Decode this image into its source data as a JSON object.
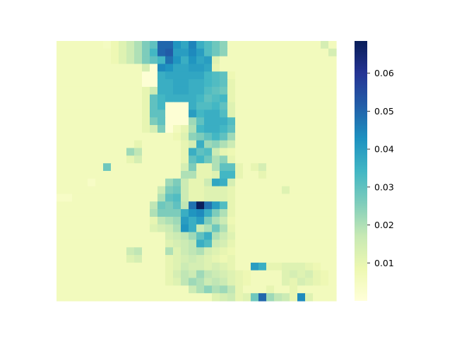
{
  "chart_data": {
    "type": "heatmap",
    "title": "",
    "xlabel": "",
    "ylabel": "",
    "grid": false,
    "x_ticks_shown": false,
    "y_ticks_shown": false,
    "colormap": "YlGnBu",
    "colormap_stops": [
      "#ffffd9",
      "#edf8b1",
      "#c7e9b4",
      "#7fcdbb",
      "#41b6c4",
      "#1d91c0",
      "#225ea8",
      "#253494",
      "#081d58"
    ],
    "value_range": [
      0.0,
      0.0685
    ],
    "colorbar": {
      "position": "right",
      "ticks": [
        0.01,
        0.02,
        0.03,
        0.04,
        0.05,
        0.06
      ],
      "tick_labels": [
        "0.01",
        "0.02",
        "0.03",
        "0.04",
        "0.05",
        "0.06"
      ]
    },
    "rows": 34,
    "cols": 36,
    "values": [
      [
        0.006,
        0.006,
        0.006,
        0.006,
        0.006,
        0.006,
        0.005,
        0.008,
        0.012,
        0.016,
        0.02,
        0.026,
        0.03,
        0.05,
        0.05,
        0.042,
        0.038,
        0.045,
        0.036,
        0.032,
        0.028,
        0.024,
        0.006,
        0.006,
        0.006,
        0.006,
        0.006,
        0.006,
        0.006,
        0.006,
        0.006,
        0.006,
        0.006,
        0.006,
        0.014,
        0.006
      ],
      [
        0.006,
        0.006,
        0.006,
        0.006,
        0.006,
        0.006,
        0.006,
        0.008,
        0.012,
        0.016,
        0.02,
        0.026,
        0.034,
        0.05,
        0.052,
        0.04,
        0.04,
        0.044,
        0.04,
        0.032,
        0.028,
        0.024,
        0.006,
        0.006,
        0.006,
        0.006,
        0.006,
        0.006,
        0.006,
        0.006,
        0.006,
        0.006,
        0.006,
        0.006,
        0.006,
        0.014
      ],
      [
        0.006,
        0.006,
        0.006,
        0.006,
        0.006,
        0.006,
        0.006,
        0.008,
        0.012,
        0.016,
        0.02,
        0.026,
        0.03,
        0.034,
        0.048,
        0.042,
        0.036,
        0.042,
        0.038,
        0.04,
        0.012,
        0.006,
        0.006,
        0.006,
        0.006,
        0.006,
        0.006,
        0.006,
        0.006,
        0.006,
        0.006,
        0.006,
        0.006,
        0.006,
        0.006,
        0.006
      ],
      [
        0.006,
        0.006,
        0.006,
        0.006,
        0.006,
        0.006,
        0.006,
        0.006,
        0.006,
        0.006,
        0.006,
        0.014,
        0.001,
        0.044,
        0.042,
        0.038,
        0.038,
        0.04,
        0.04,
        0.038,
        0.01,
        0.006,
        0.006,
        0.006,
        0.006,
        0.006,
        0.006,
        0.006,
        0.006,
        0.006,
        0.006,
        0.006,
        0.006,
        0.006,
        0.006,
        0.006
      ],
      [
        0.006,
        0.006,
        0.006,
        0.006,
        0.006,
        0.006,
        0.006,
        0.006,
        0.006,
        0.006,
        0.006,
        0.001,
        0.001,
        0.036,
        0.038,
        0.038,
        0.038,
        0.038,
        0.038,
        0.034,
        0.032,
        0.03,
        0.008,
        0.006,
        0.006,
        0.006,
        0.006,
        0.006,
        0.006,
        0.006,
        0.006,
        0.006,
        0.006,
        0.006,
        0.006,
        0.006
      ],
      [
        0.006,
        0.006,
        0.006,
        0.006,
        0.006,
        0.006,
        0.006,
        0.006,
        0.006,
        0.006,
        0.006,
        0.001,
        0.001,
        0.036,
        0.036,
        0.038,
        0.038,
        0.036,
        0.036,
        0.034,
        0.032,
        0.03,
        0.01,
        0.006,
        0.006,
        0.006,
        0.006,
        0.006,
        0.006,
        0.006,
        0.006,
        0.006,
        0.006,
        0.006,
        0.006,
        0.006
      ],
      [
        0.006,
        0.006,
        0.006,
        0.006,
        0.006,
        0.006,
        0.006,
        0.006,
        0.006,
        0.006,
        0.006,
        0.01,
        0.016,
        0.036,
        0.036,
        0.038,
        0.038,
        0.036,
        0.036,
        0.032,
        0.03,
        0.028,
        0.01,
        0.006,
        0.006,
        0.006,
        0.006,
        0.006,
        0.006,
        0.006,
        0.006,
        0.006,
        0.006,
        0.006,
        0.006,
        0.006
      ],
      [
        0.006,
        0.006,
        0.006,
        0.006,
        0.006,
        0.006,
        0.006,
        0.006,
        0.006,
        0.006,
        0.006,
        0.01,
        0.03,
        0.034,
        0.036,
        0.036,
        0.036,
        0.036,
        0.034,
        0.03,
        0.032,
        0.034,
        0.01,
        0.006,
        0.006,
        0.006,
        0.006,
        0.006,
        0.006,
        0.006,
        0.006,
        0.006,
        0.006,
        0.006,
        0.006,
        0.006
      ],
      [
        0.006,
        0.006,
        0.006,
        0.006,
        0.006,
        0.006,
        0.006,
        0.006,
        0.006,
        0.006,
        0.006,
        0.01,
        0.03,
        0.034,
        0.001,
        0.001,
        0.001,
        0.036,
        0.032,
        0.032,
        0.034,
        0.03,
        0.012,
        0.006,
        0.006,
        0.006,
        0.006,
        0.006,
        0.006,
        0.006,
        0.006,
        0.006,
        0.006,
        0.006,
        0.006,
        0.006
      ],
      [
        0.006,
        0.006,
        0.006,
        0.006,
        0.006,
        0.006,
        0.006,
        0.006,
        0.006,
        0.006,
        0.006,
        0.01,
        0.03,
        0.03,
        0.001,
        0.001,
        0.001,
        0.04,
        0.034,
        0.036,
        0.036,
        0.032,
        0.012,
        0.006,
        0.006,
        0.006,
        0.006,
        0.006,
        0.006,
        0.006,
        0.006,
        0.006,
        0.006,
        0.006,
        0.006,
        0.006
      ],
      [
        0.006,
        0.006,
        0.006,
        0.006,
        0.006,
        0.006,
        0.006,
        0.006,
        0.006,
        0.006,
        0.006,
        0.01,
        0.026,
        0.03,
        0.001,
        0.001,
        0.001,
        0.022,
        0.03,
        0.036,
        0.036,
        0.036,
        0.032,
        0.006,
        0.006,
        0.006,
        0.006,
        0.006,
        0.006,
        0.006,
        0.006,
        0.006,
        0.006,
        0.006,
        0.006,
        0.006
      ],
      [
        0.006,
        0.006,
        0.006,
        0.006,
        0.006,
        0.006,
        0.006,
        0.006,
        0.006,
        0.006,
        0.006,
        0.01,
        0.014,
        0.026,
        0.001,
        0.006,
        0.01,
        0.02,
        0.034,
        0.036,
        0.036,
        0.034,
        0.03,
        0.006,
        0.006,
        0.006,
        0.006,
        0.006,
        0.006,
        0.006,
        0.006,
        0.006,
        0.006,
        0.006,
        0.006,
        0.006
      ],
      [
        0.006,
        0.006,
        0.006,
        0.006,
        0.006,
        0.006,
        0.006,
        0.006,
        0.006,
        0.006,
        0.006,
        0.006,
        0.006,
        0.006,
        0.006,
        0.008,
        0.012,
        0.024,
        0.026,
        0.03,
        0.034,
        0.03,
        0.022,
        0.006,
        0.006,
        0.006,
        0.006,
        0.006,
        0.006,
        0.006,
        0.006,
        0.006,
        0.006,
        0.006,
        0.006,
        0.006
      ],
      [
        0.006,
        0.006,
        0.006,
        0.006,
        0.006,
        0.006,
        0.006,
        0.006,
        0.006,
        0.006,
        0.01,
        0.006,
        0.006,
        0.006,
        0.006,
        0.006,
        0.01,
        0.014,
        0.036,
        0.022,
        0.024,
        0.02,
        0.016,
        0.006,
        0.006,
        0.006,
        0.006,
        0.006,
        0.006,
        0.006,
        0.006,
        0.006,
        0.006,
        0.006,
        0.006,
        0.006
      ],
      [
        0.006,
        0.006,
        0.006,
        0.006,
        0.006,
        0.006,
        0.006,
        0.006,
        0.006,
        0.022,
        0.018,
        0.006,
        0.006,
        0.006,
        0.006,
        0.006,
        0.01,
        0.036,
        0.03,
        0.032,
        0.016,
        0.01,
        0.008,
        0.006,
        0.006,
        0.006,
        0.006,
        0.006,
        0.006,
        0.006,
        0.006,
        0.006,
        0.006,
        0.006,
        0.006,
        0.006
      ],
      [
        0.006,
        0.006,
        0.006,
        0.006,
        0.006,
        0.006,
        0.006,
        0.006,
        0.006,
        0.01,
        0.014,
        0.006,
        0.006,
        0.006,
        0.006,
        0.006,
        0.01,
        0.03,
        0.034,
        0.028,
        0.02,
        0.024,
        0.01,
        0.006,
        0.006,
        0.006,
        0.006,
        0.006,
        0.006,
        0.006,
        0.006,
        0.006,
        0.006,
        0.006,
        0.006,
        0.006
      ],
      [
        0.006,
        0.006,
        0.006,
        0.006,
        0.006,
        0.006,
        0.028,
        0.006,
        0.006,
        0.006,
        0.006,
        0.006,
        0.006,
        0.006,
        0.006,
        0.006,
        0.014,
        0.026,
        0.01,
        0.01,
        0.02,
        0.03,
        0.03,
        0.01,
        0.006,
        0.01,
        0.014,
        0.006,
        0.006,
        0.006,
        0.006,
        0.006,
        0.006,
        0.006,
        0.006,
        0.006
      ],
      [
        0.006,
        0.006,
        0.006,
        0.006,
        0.006,
        0.006,
        0.006,
        0.006,
        0.006,
        0.006,
        0.006,
        0.006,
        0.006,
        0.006,
        0.006,
        0.006,
        0.02,
        0.02,
        0.01,
        0.01,
        0.012,
        0.034,
        0.034,
        0.01,
        0.006,
        0.006,
        0.01,
        0.006,
        0.006,
        0.006,
        0.006,
        0.006,
        0.006,
        0.006,
        0.006,
        0.006
      ],
      [
        0.006,
        0.006,
        0.006,
        0.006,
        0.004,
        0.006,
        0.006,
        0.006,
        0.006,
        0.006,
        0.006,
        0.006,
        0.006,
        0.006,
        0.022,
        0.026,
        0.016,
        0.01,
        0.01,
        0.016,
        0.038,
        0.036,
        0.014,
        0.006,
        0.006,
        0.006,
        0.006,
        0.006,
        0.006,
        0.006,
        0.006,
        0.006,
        0.006,
        0.006,
        0.006,
        0.006
      ],
      [
        0.006,
        0.006,
        0.006,
        0.006,
        0.006,
        0.006,
        0.006,
        0.006,
        0.006,
        0.006,
        0.006,
        0.006,
        0.006,
        0.016,
        0.026,
        0.028,
        0.016,
        0.01,
        0.01,
        0.012,
        0.012,
        0.012,
        0.01,
        0.006,
        0.006,
        0.006,
        0.006,
        0.006,
        0.006,
        0.012,
        0.006,
        0.006,
        0.006,
        0.006,
        0.006,
        0.006
      ],
      [
        0.004,
        0.004,
        0.006,
        0.006,
        0.006,
        0.006,
        0.006,
        0.006,
        0.006,
        0.006,
        0.006,
        0.006,
        0.006,
        0.02,
        0.03,
        0.032,
        0.016,
        0.01,
        0.01,
        0.012,
        0.012,
        0.012,
        0.01,
        0.006,
        0.006,
        0.006,
        0.006,
        0.006,
        0.006,
        0.006,
        0.006,
        0.006,
        0.006,
        0.006,
        0.006,
        0.006
      ],
      [
        0.006,
        0.006,
        0.006,
        0.006,
        0.006,
        0.006,
        0.006,
        0.006,
        0.006,
        0.006,
        0.006,
        0.006,
        0.018,
        0.028,
        0.026,
        0.03,
        0.018,
        0.048,
        0.068,
        0.048,
        0.04,
        0.032,
        0.01,
        0.006,
        0.006,
        0.006,
        0.006,
        0.006,
        0.006,
        0.006,
        0.006,
        0.006,
        0.006,
        0.006,
        0.006,
        0.006
      ],
      [
        0.006,
        0.006,
        0.006,
        0.006,
        0.006,
        0.006,
        0.006,
        0.006,
        0.006,
        0.006,
        0.006,
        0.006,
        0.02,
        0.026,
        0.026,
        0.026,
        0.036,
        0.042,
        0.044,
        0.036,
        0.026,
        0.02,
        0.01,
        0.006,
        0.006,
        0.006,
        0.006,
        0.006,
        0.006,
        0.006,
        0.006,
        0.006,
        0.006,
        0.006,
        0.006,
        0.006
      ],
      [
        0.006,
        0.006,
        0.006,
        0.006,
        0.006,
        0.006,
        0.006,
        0.006,
        0.006,
        0.006,
        0.006,
        0.006,
        0.01,
        0.018,
        0.02,
        0.022,
        0.04,
        0.036,
        0.04,
        0.026,
        0.02,
        0.016,
        0.008,
        0.006,
        0.006,
        0.006,
        0.006,
        0.006,
        0.006,
        0.006,
        0.006,
        0.006,
        0.006,
        0.006,
        0.006,
        0.006
      ],
      [
        0.006,
        0.006,
        0.006,
        0.006,
        0.006,
        0.006,
        0.006,
        0.006,
        0.006,
        0.006,
        0.006,
        0.006,
        0.012,
        0.014,
        0.016,
        0.02,
        0.042,
        0.036,
        0.016,
        0.02,
        0.028,
        0.02,
        0.01,
        0.006,
        0.006,
        0.006,
        0.006,
        0.006,
        0.006,
        0.006,
        0.006,
        0.006,
        0.006,
        0.006,
        0.006,
        0.006
      ],
      [
        0.006,
        0.006,
        0.006,
        0.006,
        0.006,
        0.006,
        0.006,
        0.006,
        0.006,
        0.006,
        0.006,
        0.006,
        0.006,
        0.006,
        0.014,
        0.016,
        0.018,
        0.022,
        0.03,
        0.036,
        0.02,
        0.016,
        0.012,
        0.006,
        0.006,
        0.006,
        0.006,
        0.006,
        0.006,
        0.006,
        0.006,
        0.006,
        0.006,
        0.006,
        0.006,
        0.006
      ],
      [
        0.006,
        0.006,
        0.006,
        0.006,
        0.006,
        0.006,
        0.006,
        0.006,
        0.006,
        0.006,
        0.006,
        0.006,
        0.006,
        0.006,
        0.012,
        0.014,
        0.016,
        0.018,
        0.036,
        0.032,
        0.016,
        0.014,
        0.01,
        0.006,
        0.006,
        0.006,
        0.006,
        0.006,
        0.006,
        0.006,
        0.006,
        0.006,
        0.006,
        0.006,
        0.006,
        0.006
      ],
      [
        0.006,
        0.006,
        0.006,
        0.006,
        0.006,
        0.006,
        0.006,
        0.006,
        0.006,
        0.016,
        0.018,
        0.006,
        0.006,
        0.006,
        0.02,
        0.012,
        0.016,
        0.018,
        0.02,
        0.014,
        0.012,
        0.01,
        0.008,
        0.006,
        0.006,
        0.006,
        0.006,
        0.006,
        0.006,
        0.006,
        0.006,
        0.006,
        0.006,
        0.006,
        0.006,
        0.006
      ],
      [
        0.006,
        0.006,
        0.006,
        0.006,
        0.006,
        0.006,
        0.006,
        0.006,
        0.006,
        0.012,
        0.014,
        0.006,
        0.006,
        0.006,
        0.01,
        0.012,
        0.014,
        0.016,
        0.014,
        0.012,
        0.01,
        0.008,
        0.01,
        0.006,
        0.006,
        0.006,
        0.006,
        0.006,
        0.006,
        0.006,
        0.006,
        0.006,
        0.006,
        0.006,
        0.006,
        0.006
      ],
      [
        0.006,
        0.006,
        0.006,
        0.006,
        0.006,
        0.006,
        0.006,
        0.006,
        0.006,
        0.006,
        0.006,
        0.006,
        0.006,
        0.006,
        0.01,
        0.012,
        0.016,
        0.014,
        0.014,
        0.012,
        0.014,
        0.012,
        0.01,
        0.006,
        0.006,
        0.04,
        0.036,
        0.01,
        0.01,
        0.012,
        0.012,
        0.012,
        0.01,
        0.008,
        0.006,
        0.006
      ],
      [
        0.006,
        0.006,
        0.006,
        0.006,
        0.006,
        0.006,
        0.006,
        0.006,
        0.006,
        0.006,
        0.006,
        0.006,
        0.006,
        0.006,
        0.01,
        0.014,
        0.018,
        0.016,
        0.022,
        0.018,
        0.016,
        0.014,
        0.012,
        0.01,
        0.008,
        0.006,
        0.006,
        0.006,
        0.006,
        0.012,
        0.014,
        0.012,
        0.014,
        0.01,
        0.008,
        0.006
      ],
      [
        0.006,
        0.006,
        0.006,
        0.006,
        0.006,
        0.006,
        0.006,
        0.006,
        0.006,
        0.006,
        0.006,
        0.006,
        0.006,
        0.006,
        0.01,
        0.012,
        0.018,
        0.022,
        0.02,
        0.016,
        0.018,
        0.016,
        0.012,
        0.01,
        0.008,
        0.006,
        0.006,
        0.006,
        0.006,
        0.012,
        0.01,
        0.014,
        0.012,
        0.01,
        0.008,
        0.006
      ],
      [
        0.006,
        0.006,
        0.006,
        0.006,
        0.006,
        0.006,
        0.006,
        0.006,
        0.006,
        0.006,
        0.006,
        0.006,
        0.006,
        0.006,
        0.006,
        0.006,
        0.006,
        0.016,
        0.02,
        0.024,
        0.02,
        0.022,
        0.018,
        0.01,
        0.006,
        0.006,
        0.006,
        0.01,
        0.006,
        0.006,
        0.01,
        0.006,
        0.006,
        0.006,
        0.006,
        0.006
      ],
      [
        0.006,
        0.006,
        0.006,
        0.006,
        0.006,
        0.006,
        0.006,
        0.006,
        0.006,
        0.006,
        0.006,
        0.006,
        0.006,
        0.006,
        0.006,
        0.006,
        0.006,
        0.006,
        0.006,
        0.006,
        0.012,
        0.014,
        0.016,
        0.01,
        0.012,
        0.028,
        0.05,
        0.022,
        0.018,
        0.016,
        0.01,
        0.044,
        0.012,
        0.006,
        0.006,
        0.006
      ]
    ]
  }
}
